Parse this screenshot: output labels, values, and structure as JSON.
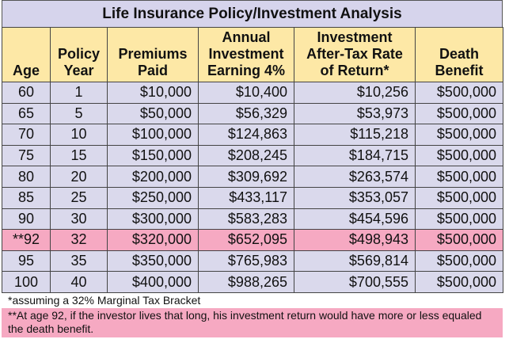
{
  "title": "Life Insurance Policy/Investment Analysis",
  "table": {
    "headers": [
      [
        "Age"
      ],
      [
        "Policy",
        "Year"
      ],
      [
        "Premiums",
        "Paid"
      ],
      [
        "Annual",
        "Investment",
        "Earning 4%"
      ],
      [
        "Investment",
        "After-Tax Rate",
        "of Return*"
      ],
      [
        "Death",
        "Benefit"
      ]
    ],
    "rows": [
      [
        "60",
        "1",
        "$10,000",
        "$10,400",
        "$10,256",
        "$500,000"
      ],
      [
        "65",
        "5",
        "$50,000",
        "$56,329",
        "$53,973",
        "$500,000"
      ],
      [
        "70",
        "10",
        "$100,000",
        "$124,863",
        "$115,218",
        "$500,000"
      ],
      [
        "75",
        "15",
        "$150,000",
        "$208,245",
        "$184,715",
        "$500,000"
      ],
      [
        "80",
        "20",
        "$200,000",
        "$309,692",
        "$263,574",
        "$500,000"
      ],
      [
        "85",
        "25",
        "$250,000",
        "$433,117",
        "$353,057",
        "$500,000"
      ],
      [
        "90",
        "30",
        "$300,000",
        "$583,283",
        "$454,596",
        "$500,000"
      ],
      [
        "**92",
        "32",
        "$320,000",
        "$652,095",
        "$498,943",
        "$500,000"
      ],
      [
        "95",
        "35",
        "$350,000",
        "$765,983",
        "$569,814",
        "$500,000"
      ],
      [
        "100",
        "40",
        "$400,000",
        "$988,265",
        "$700,555",
        "$500,000"
      ]
    ]
  },
  "footnotes": [
    "*assuming a 32% Marginal Tax Bracket",
    "**At age 92, if the investor lives that long, his investment return would have more or less equaled the death benefit."
  ]
}
